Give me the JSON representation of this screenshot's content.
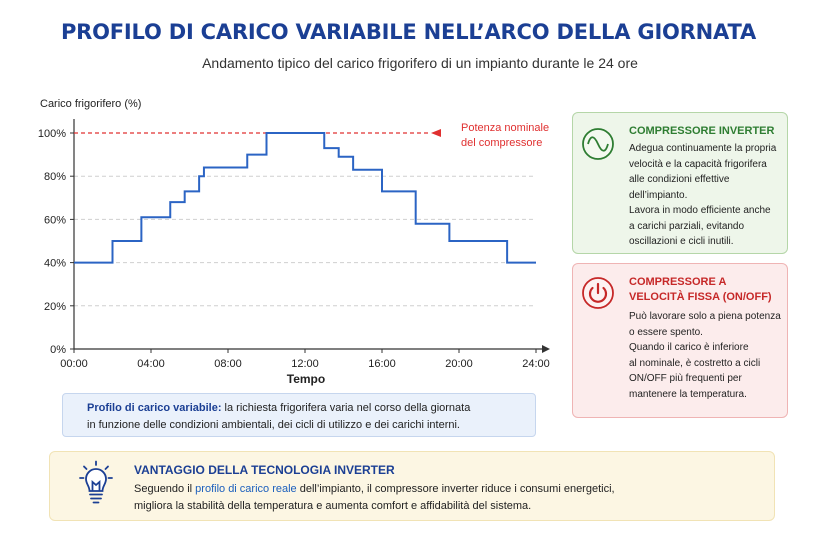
{
  "header": {
    "title": "PROFILO DI CARICO VARIABILE NELL’ARCO DELLA GIORNATA",
    "subtitle": "Andamento tipico del carico frigorifero di un impianto durante le 24 ore"
  },
  "chart_data": {
    "type": "line",
    "step": true,
    "ylabel": "Carico frigorifero (%)",
    "xlabel": "Tempo",
    "xlim": [
      0,
      24
    ],
    "ylim": [
      0,
      100
    ],
    "x_ticks": [
      "00:00",
      "04:00",
      "08:00",
      "12:00",
      "16:00",
      "20:00",
      "24:00"
    ],
    "y_ticks": [
      "0%",
      "20%",
      "40%",
      "60%",
      "80%",
      "100%"
    ],
    "grid": "horizontal dashed",
    "series": [
      {
        "x": [
          0,
          2,
          3.5,
          5,
          5.75,
          6.5,
          6.75,
          7,
          9,
          10,
          13,
          13.75,
          14.5,
          16,
          17.75,
          19.5,
          22.5,
          24
        ],
        "y": [
          40,
          50,
          61,
          68,
          73,
          80,
          84,
          84,
          90,
          100,
          93,
          89,
          83,
          73,
          58,
          50,
          40,
          40
        ]
      }
    ],
    "reference_line": {
      "y": 100,
      "label": [
        "Potenza nominale",
        "del compressore"
      ]
    },
    "colors": {
      "series": "#2b64c4",
      "reference": "#e03030"
    }
  },
  "cards": {
    "inverter": {
      "title": "COMPRESSORE INVERTER",
      "lines": [
        "Adegua continuamente la propria",
        "velocità e la capacità frigorifera",
        "alle condizioni effettive",
        "dell’impianto.",
        "Lavora in modo efficiente anche",
        "a carichi parziali, evitando",
        "oscillazioni e cicli inutili."
      ]
    },
    "fixed": {
      "title_lines": [
        "COMPRESSORE A",
        "VELOCITÀ FISSA (ON/OFF)"
      ],
      "lines": [
        "Può lavorare solo a piena potenza",
        "o essere spento.",
        "Quando il carico è inferiore",
        "al nominale, è costretto a cicli",
        "ON/OFF più frequenti per",
        "mantenere la temperatura."
      ]
    }
  },
  "note": {
    "highlight": "Profilo di carico variabile:",
    "line1_rest": " la richiesta frigorifera varia nel corso della giornata",
    "line2": "in funzione delle condizioni ambientali, dei cicli di utilizzo e dei carichi interni."
  },
  "advantage": {
    "title": "VANTAGGIO DELLA TECNOLOGIA INVERTER",
    "line1_pre": "Seguendo il ",
    "line1_hl": "profilo di carico reale",
    "line1_post": "  dell’impianto, il compressore inverter riduce i consumi energetici,",
    "line2": "migliora la stabilità della temperatura e aumenta comfort e affidabilità del sistema."
  },
  "icons": {
    "inverter": "sine-wave-icon",
    "fixed": "power-icon",
    "advantage": "lightbulb-icon"
  },
  "colors": {
    "title": "#1b3f94",
    "green": "#2e7d32",
    "red": "#c62828"
  }
}
